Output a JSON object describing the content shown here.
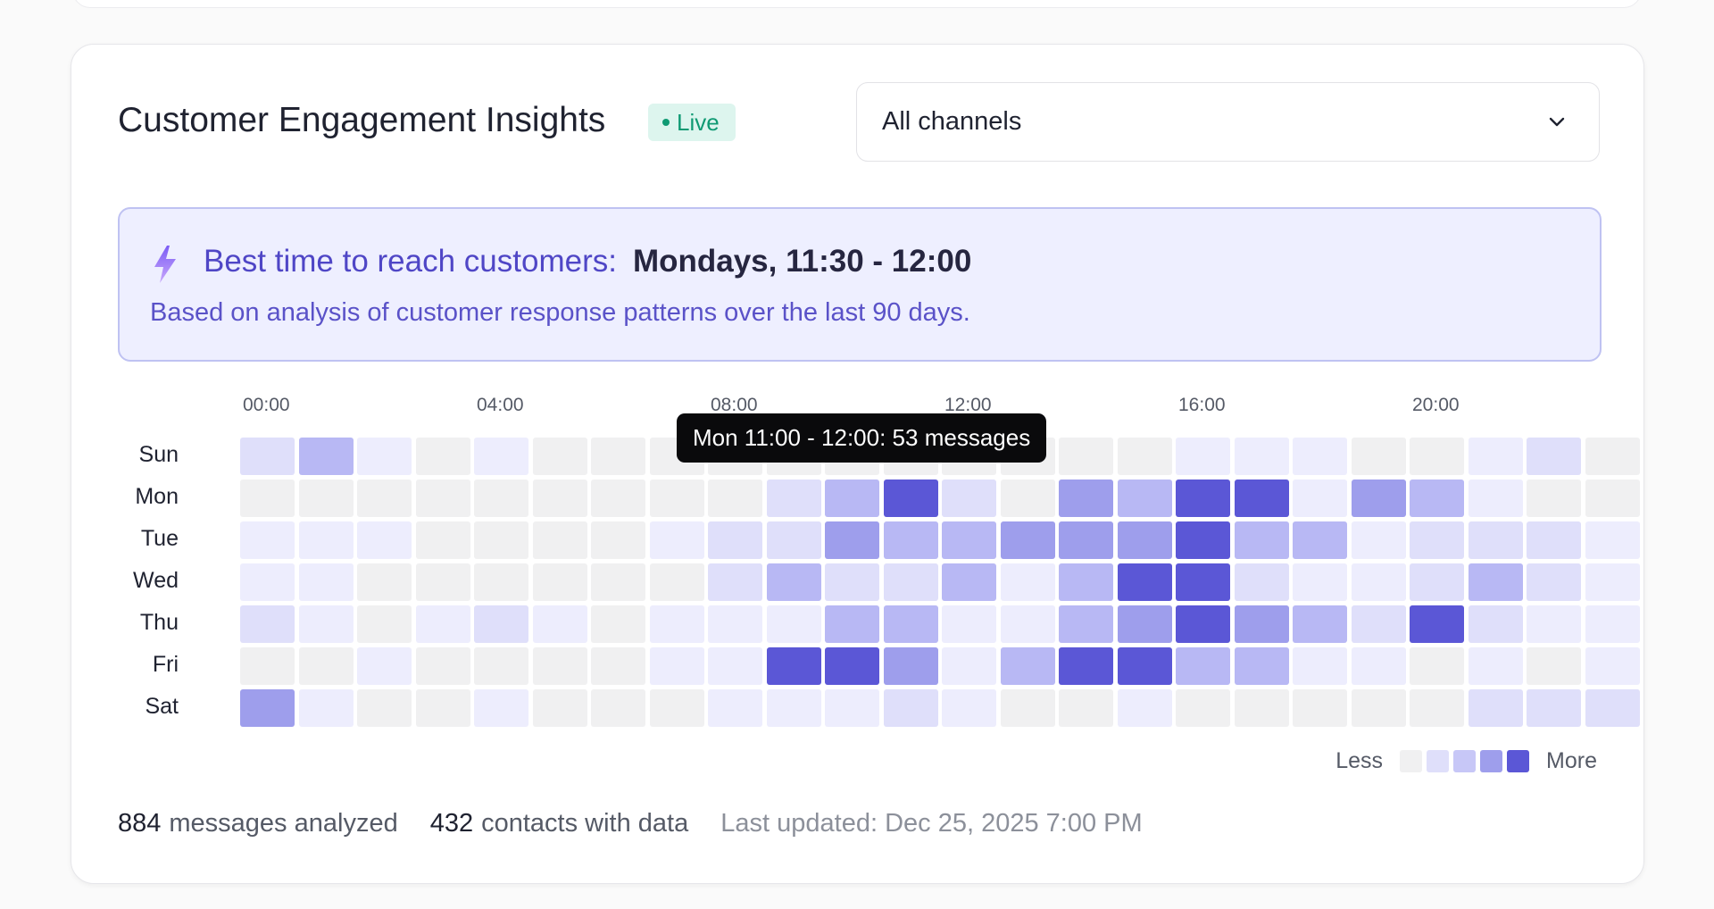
{
  "card": {
    "title": "Customer Engagement Insights",
    "live_badge": "Live",
    "channel_select": {
      "value": "All channels"
    }
  },
  "insight": {
    "label": "Best time to reach customers:",
    "value": "Mondays, 11:30 - 12:00",
    "note": "Based on analysis of customer response patterns over the last 90 days."
  },
  "heatmap": {
    "hour_labels": [
      "00:00",
      "04:00",
      "08:00",
      "12:00",
      "16:00",
      "20:00"
    ],
    "days": [
      "Sun",
      "Mon",
      "Tue",
      "Wed",
      "Thu",
      "Fri",
      "Sat"
    ],
    "intensity": [
      [
        2,
        3,
        1,
        0,
        1,
        0,
        0,
        0,
        0,
        0,
        0,
        0,
        0,
        0,
        0,
        0,
        1,
        1,
        1,
        0,
        0,
        1,
        2,
        0
      ],
      [
        0,
        0,
        0,
        0,
        0,
        0,
        0,
        0,
        0,
        2,
        3,
        5,
        2,
        0,
        4,
        3,
        5,
        5,
        1,
        4,
        3,
        1,
        0,
        0
      ],
      [
        1,
        1,
        1,
        0,
        0,
        0,
        0,
        1,
        2,
        2,
        4,
        3,
        3,
        4,
        4,
        4,
        5,
        3,
        3,
        1,
        2,
        2,
        2,
        1
      ],
      [
        1,
        1,
        0,
        0,
        0,
        0,
        0,
        0,
        2,
        3,
        2,
        2,
        3,
        1,
        3,
        5,
        5,
        2,
        1,
        1,
        2,
        3,
        2,
        1
      ],
      [
        2,
        1,
        0,
        1,
        2,
        1,
        0,
        1,
        1,
        1,
        3,
        3,
        1,
        1,
        3,
        4,
        5,
        4,
        3,
        2,
        5,
        2,
        1,
        1
      ],
      [
        0,
        0,
        1,
        0,
        0,
        0,
        0,
        1,
        1,
        5,
        5,
        4,
        1,
        3,
        5,
        5,
        3,
        3,
        1,
        1,
        0,
        1,
        0,
        1
      ],
      [
        4,
        1,
        0,
        0,
        1,
        0,
        0,
        0,
        1,
        1,
        1,
        2,
        1,
        0,
        0,
        1,
        0,
        0,
        0,
        0,
        0,
        2,
        2,
        2
      ]
    ],
    "colors": [
      "#f0f0f1",
      "#ededfd",
      "#dfdffa",
      "#b8b8f4",
      "#9e9eec",
      "#5b57d6"
    ],
    "tooltip": "Mon 11:00 - 12:00: 53 messages",
    "legend": {
      "less": "Less",
      "more": "More",
      "colors": [
        "#f0f0f1",
        "#dfdffa",
        "#c7c7f7",
        "#9e9eec",
        "#5b57d6"
      ]
    }
  },
  "footer": {
    "messages_count": "884",
    "messages_label": "messages analyzed",
    "contacts_count": "432",
    "contacts_label": "contacts with data",
    "last_updated": "Last updated: Dec 25, 2025 7:00 PM"
  }
}
